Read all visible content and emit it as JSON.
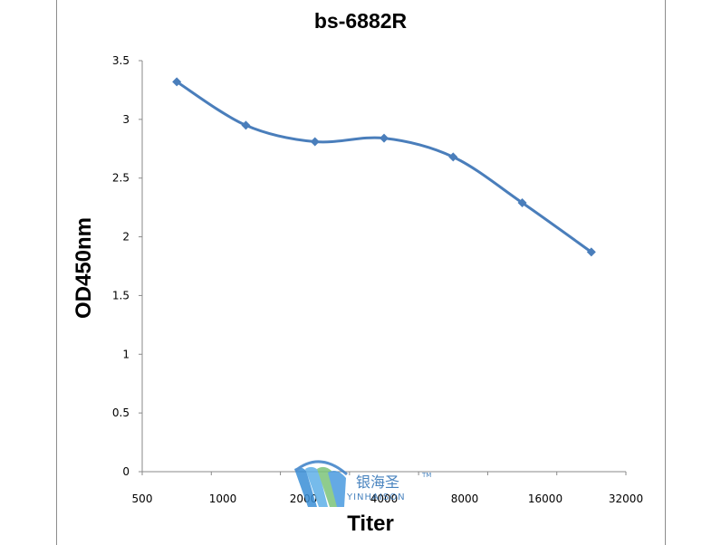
{
  "chart_data": {
    "type": "line",
    "title": "bs-6882R",
    "xlabel": "Titer",
    "ylabel": "OD450nm",
    "categories": [
      "500",
      "1000",
      "2000",
      "4000",
      "8000",
      "16000",
      "32000"
    ],
    "series": [
      {
        "values": [
          3.32,
          2.95,
          2.81,
          2.84,
          2.68,
          2.29,
          1.87
        ]
      }
    ],
    "ylim": [
      0,
      3.5
    ],
    "yticks": [
      "0",
      "0.5",
      "1",
      "1.5",
      "2",
      "2.5",
      "3",
      "3.5"
    ],
    "grid": false,
    "legend": "none",
    "line_color": "#4a7ebb",
    "smooth": true
  },
  "watermark": {
    "text": "银海圣",
    "sub": "YINHAISON",
    "tm": "TM"
  }
}
